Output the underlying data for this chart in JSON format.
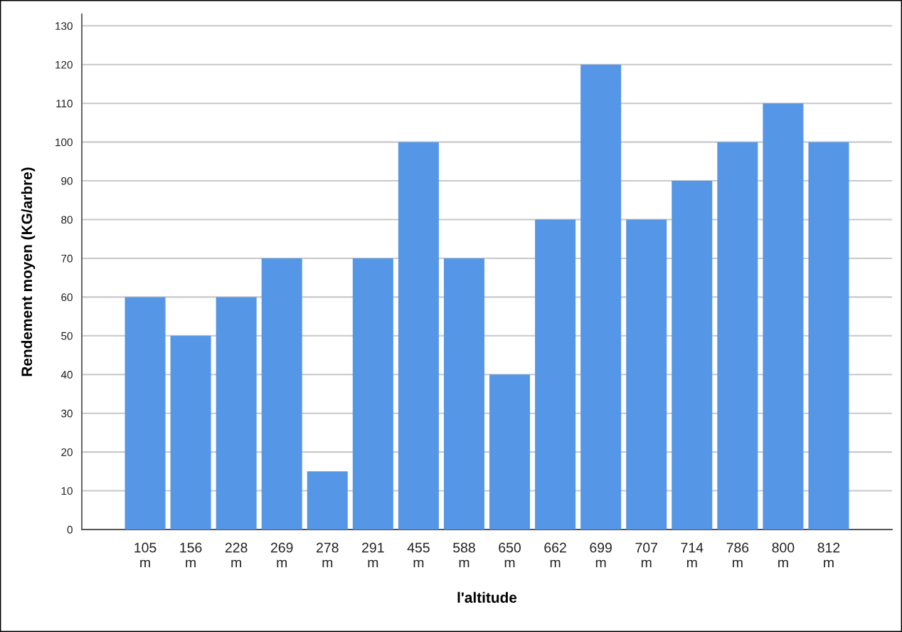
{
  "chart_data": {
    "type": "bar",
    "xlabel": "l'altitude",
    "ylabel": "Rendement moyen (KG/arbre)",
    "categories": [
      "105\nm",
      "156\nm",
      "228\nm",
      "269\nm",
      "278\nm",
      "291\nm",
      "455\nm",
      "588\nm",
      "650\nm",
      "662\nm",
      "699\nm",
      "707\nm",
      "714\nm",
      "786\nm",
      "800\nm",
      "812\nm"
    ],
    "values": [
      60,
      50,
      60,
      70,
      15,
      70,
      100,
      70,
      40,
      80,
      120,
      80,
      90,
      100,
      110,
      100
    ],
    "color": "#5596e6",
    "ylim": [
      0,
      133
    ],
    "yticks": [
      0,
      10,
      20,
      30,
      40,
      50,
      60,
      70,
      80,
      90,
      100,
      110,
      120,
      130
    ],
    "grid": "y",
    "legend": false
  }
}
